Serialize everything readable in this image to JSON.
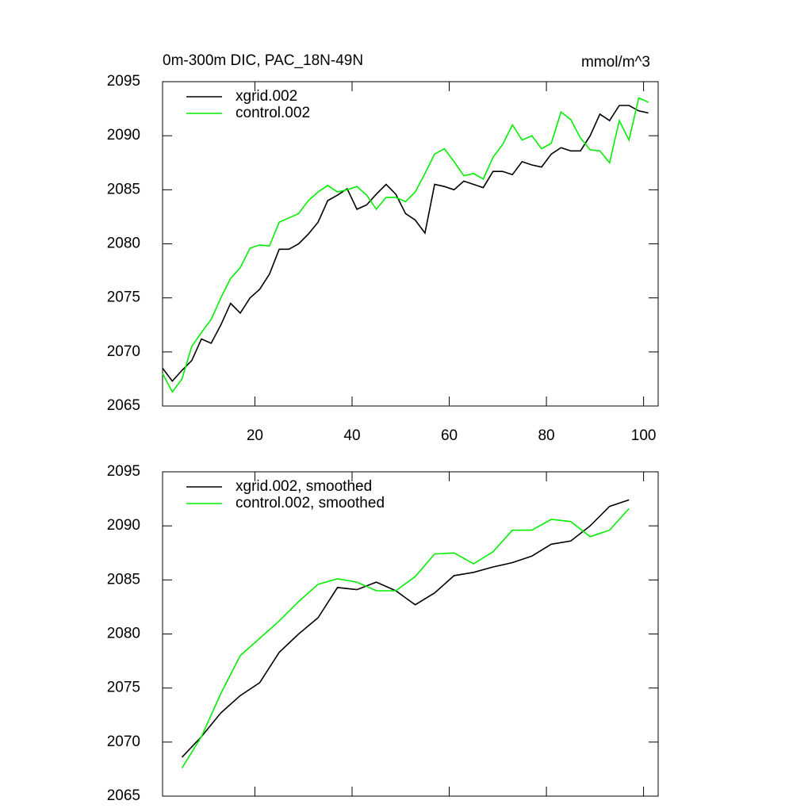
{
  "chart_data": [
    {
      "type": "line",
      "title": "0m-300m DIC, PAC_18N-49N",
      "units": "mmol/m^3",
      "x": [
        1,
        3,
        5,
        7,
        9,
        11,
        13,
        15,
        17,
        19,
        21,
        23,
        25,
        27,
        29,
        31,
        33,
        35,
        37,
        39,
        41,
        43,
        45,
        47,
        49,
        51,
        53,
        55,
        57,
        59,
        61,
        63,
        65,
        67,
        69,
        71,
        73,
        75,
        77,
        79,
        81,
        83,
        85,
        87,
        89,
        91,
        93,
        95,
        97,
        99,
        101
      ],
      "series": [
        {
          "name": "xgrid.002",
          "color": "#000000",
          "values": [
            2068.5,
            2067.3,
            2068.3,
            2069.2,
            2071.2,
            2070.8,
            2072.5,
            2074.5,
            2073.6,
            2075,
            2075.8,
            2077.2,
            2079.5,
            2079.5,
            2080,
            2080.9,
            2082,
            2084,
            2084.5,
            2085.1,
            2083.2,
            2083.6,
            2084.6,
            2085.5,
            2084.6,
            2082.8,
            2082.2,
            2081,
            2085.5,
            2085.3,
            2085,
            2085.8,
            2085.5,
            2085.2,
            2086.7,
            2086.7,
            2086.4,
            2087.6,
            2087.3,
            2087.1,
            2088.3,
            2088.9,
            2088.6,
            2088.6,
            2090,
            2092,
            2091.4,
            2092.8,
            2092.8,
            2092.3,
            2092.1
          ]
        },
        {
          "name": "control.002",
          "color": "#00ee00",
          "values": [
            2068,
            2066.3,
            2067.5,
            2070.5,
            2071.8,
            2073,
            2075,
            2076.8,
            2077.8,
            2079.6,
            2079.9,
            2079.8,
            2082,
            2082.4,
            2082.8,
            2084,
            2084.8,
            2085.4,
            2084.8,
            2085,
            2085.3,
            2084.5,
            2083.2,
            2084.3,
            2084.3,
            2083.9,
            2084.8,
            2086.5,
            2088.3,
            2088.8,
            2087.6,
            2086.3,
            2086.5,
            2086,
            2088,
            2089.2,
            2091,
            2089.6,
            2090,
            2088.8,
            2089.3,
            2092.2,
            2091.5,
            2089.8,
            2088.7,
            2088.6,
            2087.5,
            2091.4,
            2089.6,
            2093.5,
            2093.1
          ]
        }
      ],
      "xlim": [
        1,
        103
      ],
      "xticks": [
        20,
        40,
        60,
        80,
        100
      ],
      "show_xtick_labels": true,
      "ylim": [
        2065,
        2095
      ],
      "yticks": [
        2065,
        2070,
        2075,
        2080,
        2085,
        2090,
        2095
      ]
    },
    {
      "type": "line",
      "x": [
        5,
        9,
        13,
        17,
        21,
        25,
        29,
        33,
        37,
        41,
        45,
        49,
        53,
        57,
        61,
        65,
        69,
        73,
        77,
        81,
        85,
        89,
        93,
        97
      ],
      "series": [
        {
          "name": "xgrid.002, smoothed",
          "color": "#000000",
          "values": [
            2068.6,
            2070.5,
            2072.7,
            2074.3,
            2075.5,
            2078.3,
            2080,
            2081.5,
            2084.3,
            2084.1,
            2084.8,
            2084,
            2082.7,
            2083.8,
            2085.4,
            2085.7,
            2086.2,
            2086.6,
            2087.2,
            2088.3,
            2088.6,
            2090,
            2091.8,
            2092.4
          ]
        },
        {
          "name": "control.002, smoothed",
          "color": "#00ee00",
          "values": [
            2067.6,
            2070.5,
            2074.5,
            2078,
            2079.6,
            2081.2,
            2083,
            2084.6,
            2085.1,
            2084.8,
            2084,
            2084,
            2085.3,
            2087.4,
            2087.5,
            2086.5,
            2087.6,
            2089.6,
            2089.6,
            2090.6,
            2090.4,
            2089,
            2089.6,
            2091.6
          ]
        }
      ],
      "xlim": [
        1,
        103
      ],
      "xticks": [
        20,
        40,
        60,
        80,
        100
      ],
      "show_xtick_labels": false,
      "ylim": [
        2065,
        2095
      ],
      "yticks": [
        2065,
        2070,
        2075,
        2080,
        2085,
        2090,
        2095
      ]
    }
  ]
}
